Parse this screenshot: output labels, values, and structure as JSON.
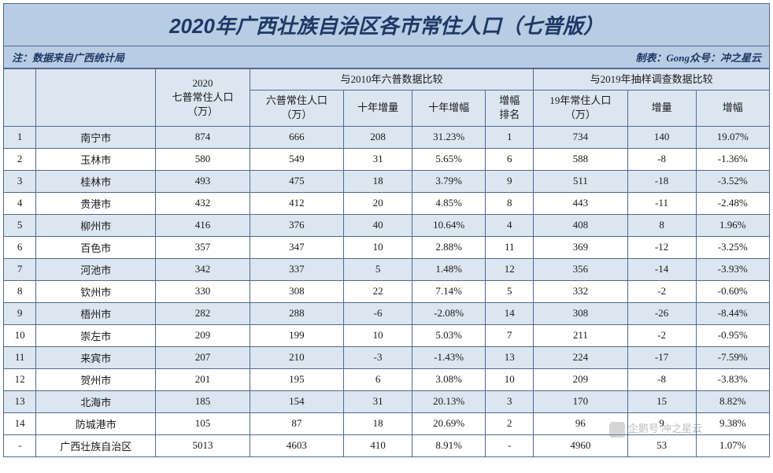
{
  "title": "2020年广西壮族自治区各市常住人口（七普版）",
  "meta": {
    "source_note": "注：数据来自广西统计局",
    "author_note": "制表：Gong众号：冲之星云"
  },
  "header": {
    "rank": "",
    "city": "",
    "pop2020": "2020\n七普常住人口\n（万）",
    "group_2010": "与2010年六普数据比较",
    "pop2010": "六普常住人口\n（万）",
    "inc10": "十年增量",
    "pct10": "十年增幅",
    "rank10": "增幅\n排名",
    "group_2019": "与2019年抽样调查数据比较",
    "pop2019": "19年常住人口\n（万）",
    "inc19": "增量",
    "pct19": "增幅"
  },
  "rows": [
    {
      "rank": "1",
      "city": "南宁市",
      "pop2020": "874",
      "pop2010": "666",
      "inc10": "208",
      "pct10": "31.23%",
      "rank10": "1",
      "pop2019": "734",
      "inc19": "140",
      "pct19": "19.07%"
    },
    {
      "rank": "2",
      "city": "玉林市",
      "pop2020": "580",
      "pop2010": "549",
      "inc10": "31",
      "pct10": "5.65%",
      "rank10": "6",
      "pop2019": "588",
      "inc19": "-8",
      "pct19": "-1.36%"
    },
    {
      "rank": "3",
      "city": "桂林市",
      "pop2020": "493",
      "pop2010": "475",
      "inc10": "18",
      "pct10": "3.79%",
      "rank10": "9",
      "pop2019": "511",
      "inc19": "-18",
      "pct19": "-3.52%"
    },
    {
      "rank": "4",
      "city": "贵港市",
      "pop2020": "432",
      "pop2010": "412",
      "inc10": "20",
      "pct10": "4.85%",
      "rank10": "8",
      "pop2019": "443",
      "inc19": "-11",
      "pct19": "-2.48%"
    },
    {
      "rank": "5",
      "city": "柳州市",
      "pop2020": "416",
      "pop2010": "376",
      "inc10": "40",
      "pct10": "10.64%",
      "rank10": "4",
      "pop2019": "408",
      "inc19": "8",
      "pct19": "1.96%"
    },
    {
      "rank": "6",
      "city": "百色市",
      "pop2020": "357",
      "pop2010": "347",
      "inc10": "10",
      "pct10": "2.88%",
      "rank10": "11",
      "pop2019": "369",
      "inc19": "-12",
      "pct19": "-3.25%"
    },
    {
      "rank": "7",
      "city": "河池市",
      "pop2020": "342",
      "pop2010": "337",
      "inc10": "5",
      "pct10": "1.48%",
      "rank10": "12",
      "pop2019": "356",
      "inc19": "-14",
      "pct19": "-3.93%"
    },
    {
      "rank": "8",
      "city": "钦州市",
      "pop2020": "330",
      "pop2010": "308",
      "inc10": "22",
      "pct10": "7.14%",
      "rank10": "5",
      "pop2019": "332",
      "inc19": "-2",
      "pct19": "-0.60%"
    },
    {
      "rank": "9",
      "city": "梧州市",
      "pop2020": "282",
      "pop2010": "288",
      "inc10": "-6",
      "pct10": "-2.08%",
      "rank10": "14",
      "pop2019": "308",
      "inc19": "-26",
      "pct19": "-8.44%"
    },
    {
      "rank": "10",
      "city": "崇左市",
      "pop2020": "209",
      "pop2010": "199",
      "inc10": "10",
      "pct10": "5.03%",
      "rank10": "7",
      "pop2019": "211",
      "inc19": "-2",
      "pct19": "-0.95%"
    },
    {
      "rank": "11",
      "city": "来宾市",
      "pop2020": "207",
      "pop2010": "210",
      "inc10": "-3",
      "pct10": "-1.43%",
      "rank10": "13",
      "pop2019": "224",
      "inc19": "-17",
      "pct19": "-7.59%"
    },
    {
      "rank": "12",
      "city": "贺州市",
      "pop2020": "201",
      "pop2010": "195",
      "inc10": "6",
      "pct10": "3.08%",
      "rank10": "10",
      "pop2019": "209",
      "inc19": "-8",
      "pct19": "-3.83%"
    },
    {
      "rank": "13",
      "city": "北海市",
      "pop2020": "185",
      "pop2010": "154",
      "inc10": "31",
      "pct10": "20.13%",
      "rank10": "3",
      "pop2019": "170",
      "inc19": "15",
      "pct19": "8.82%"
    },
    {
      "rank": "14",
      "city": "防城港市",
      "pop2020": "105",
      "pop2010": "87",
      "inc10": "18",
      "pct10": "20.69%",
      "rank10": "2",
      "pop2019": "96",
      "inc19": "9",
      "pct19": "9.38%"
    }
  ],
  "total": {
    "rank": "-",
    "city": "广西壮族自治区",
    "pop2020": "5013",
    "pop2010": "4603",
    "inc10": "410",
    "pct10": "8.91%",
    "rank10": "-",
    "pop2019": "4960",
    "inc19": "53",
    "pct19": "1.07%"
  },
  "watermark": "企鹅号 冲之星云",
  "colors": {
    "title_bg": "#b8cce4",
    "header_bg": "#dce6f1",
    "row_alt_bg": "#dce6f1",
    "border": "#4f6a8f",
    "title_text": "#1f3864"
  }
}
